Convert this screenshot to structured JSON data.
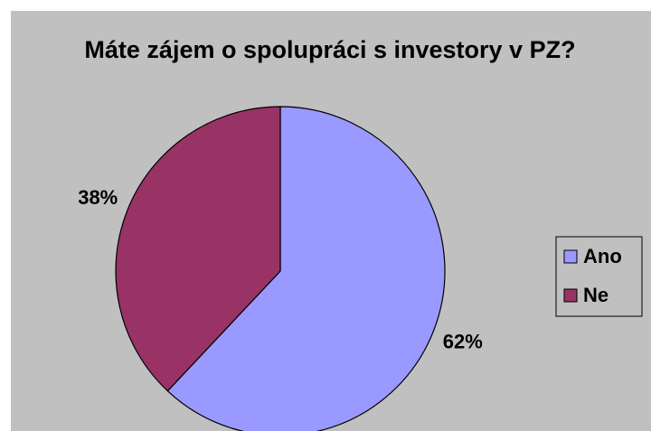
{
  "chart_data": {
    "type": "pie",
    "title": "Máte zájem o spolupráci s investory v PZ?",
    "categories": [
      "Ano",
      "Ne"
    ],
    "values": [
      62,
      38
    ],
    "value_labels": [
      "62%",
      "38%"
    ],
    "colors": [
      "#9999ff",
      "#993366"
    ],
    "legend": "right"
  }
}
